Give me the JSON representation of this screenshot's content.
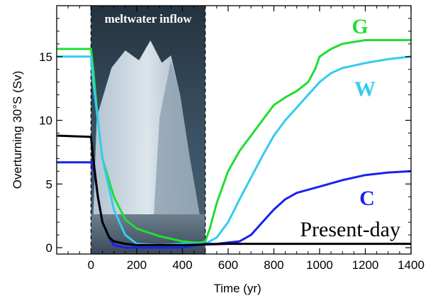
{
  "chart_data": {
    "type": "line",
    "xlabel": "Time (yr)",
    "ylabel": "Overturning 30°S (Sv)",
    "xlim": [
      -150,
      1400
    ],
    "ylim": [
      -0.5,
      19
    ],
    "x_ticks": [
      0,
      200,
      400,
      600,
      800,
      1000,
      1200,
      1400
    ],
    "y_ticks": [
      0,
      5,
      10,
      15
    ],
    "grid": false,
    "shaded_region": {
      "label": "meltwater inflow",
      "x_range": [
        0,
        500
      ],
      "fill": "photo-of-iceberg"
    },
    "series": [
      {
        "name": "G",
        "color": "#22dd33",
        "points": [
          [
            -150,
            15.6
          ],
          [
            -50,
            15.6
          ],
          [
            0,
            15.6
          ],
          [
            10,
            14
          ],
          [
            30,
            10
          ],
          [
            50,
            7
          ],
          [
            100,
            4
          ],
          [
            150,
            2.2
          ],
          [
            200,
            1.5
          ],
          [
            300,
            0.9
          ],
          [
            400,
            0.5
          ],
          [
            450,
            0.4
          ],
          [
            480,
            0.4
          ],
          [
            500,
            0.5
          ],
          [
            520,
            1.5
          ],
          [
            550,
            3.5
          ],
          [
            600,
            6
          ],
          [
            650,
            7.6
          ],
          [
            700,
            8.8
          ],
          [
            750,
            10
          ],
          [
            800,
            11.2
          ],
          [
            850,
            11.8
          ],
          [
            900,
            12.3
          ],
          [
            950,
            13
          ],
          [
            980,
            14
          ],
          [
            1000,
            15
          ],
          [
            1050,
            15.6
          ],
          [
            1100,
            16
          ],
          [
            1200,
            16.3
          ],
          [
            1300,
            16.3
          ],
          [
            1400,
            16.3
          ]
        ]
      },
      {
        "name": "W",
        "color": "#33ccee",
        "points": [
          [
            -150,
            15
          ],
          [
            0,
            15
          ],
          [
            10,
            13
          ],
          [
            30,
            10
          ],
          [
            50,
            7
          ],
          [
            100,
            3
          ],
          [
            150,
            1
          ],
          [
            200,
            0.3
          ],
          [
            300,
            0.2
          ],
          [
            400,
            0.3
          ],
          [
            500,
            0.3
          ],
          [
            550,
            0.8
          ],
          [
            600,
            2
          ],
          [
            650,
            3.8
          ],
          [
            700,
            5.5
          ],
          [
            750,
            7.2
          ],
          [
            800,
            8.8
          ],
          [
            850,
            10
          ],
          [
            900,
            11
          ],
          [
            950,
            12
          ],
          [
            1000,
            13
          ],
          [
            1050,
            13.7
          ],
          [
            1100,
            14.1
          ],
          [
            1200,
            14.5
          ],
          [
            1300,
            14.8
          ],
          [
            1400,
            15
          ]
        ]
      },
      {
        "name": "C",
        "color": "#1a22ee",
        "points": [
          [
            -150,
            6.7
          ],
          [
            0,
            6.7
          ],
          [
            15,
            6
          ],
          [
            30,
            4
          ],
          [
            50,
            2
          ],
          [
            80,
            0.8
          ],
          [
            100,
            0.2
          ],
          [
            150,
            0
          ],
          [
            200,
            0
          ],
          [
            400,
            0
          ],
          [
            500,
            0.3
          ],
          [
            550,
            0.3
          ],
          [
            600,
            0.4
          ],
          [
            650,
            0.5
          ],
          [
            700,
            1
          ],
          [
            750,
            2
          ],
          [
            800,
            3
          ],
          [
            850,
            3.8
          ],
          [
            900,
            4.3
          ],
          [
            1000,
            4.8
          ],
          [
            1100,
            5.3
          ],
          [
            1200,
            5.7
          ],
          [
            1300,
            5.9
          ],
          [
            1400,
            6
          ]
        ]
      },
      {
        "name": "Present-day",
        "color": "#000000",
        "points": [
          [
            -150,
            8.8
          ],
          [
            0,
            8.7
          ],
          [
            10,
            7
          ],
          [
            30,
            4
          ],
          [
            50,
            2
          ],
          [
            80,
            0.8
          ],
          [
            100,
            0.5
          ],
          [
            150,
            0.3
          ],
          [
            200,
            0.2
          ],
          [
            400,
            0.2
          ],
          [
            600,
            0.3
          ],
          [
            800,
            0.3
          ],
          [
            1000,
            0.3
          ],
          [
            1200,
            0.3
          ],
          [
            1400,
            0.3
          ]
        ]
      }
    ]
  }
}
